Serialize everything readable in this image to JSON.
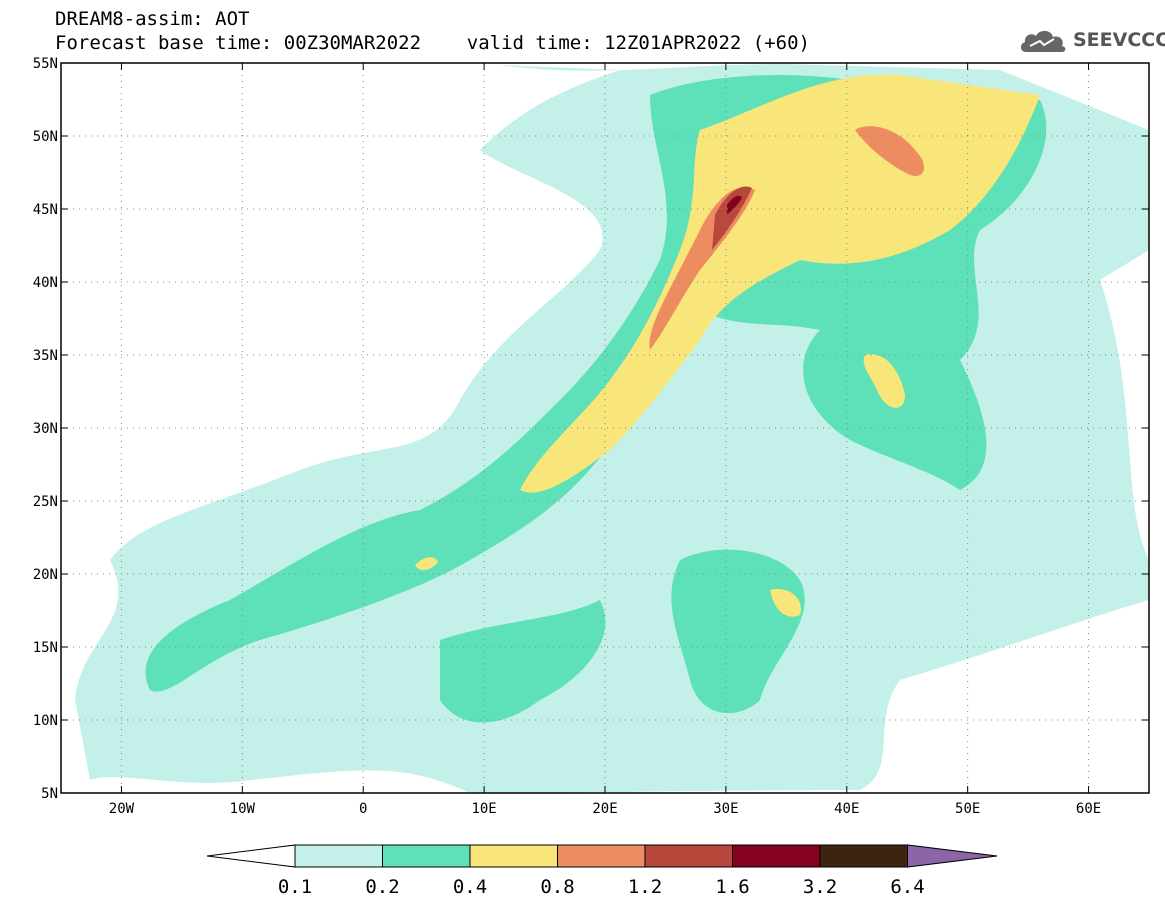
{
  "title": {
    "line1": "DREAM8-assim: AOT",
    "line2": "Forecast base time: 00Z30MAR2022    valid time: 12Z01APR2022 (+60)"
  },
  "logo": {
    "text": "SEEVCCC",
    "icon": "cloud-icon"
  },
  "map": {
    "lon_range": [
      -25,
      65
    ],
    "lat_range": [
      5,
      55
    ],
    "lat_ticks": [
      "55N",
      "50N",
      "45N",
      "40N",
      "35N",
      "30N",
      "25N",
      "20N",
      "15N",
      "10N",
      "5N"
    ],
    "lon_ticks": [
      "20W",
      "10W",
      "0",
      "10E",
      "20E",
      "30E",
      "40E",
      "50E",
      "60E"
    ],
    "gridlines": "dotted"
  },
  "colorbar": {
    "labels": [
      "0.1",
      "0.2",
      "0.4",
      "0.8",
      "1.2",
      "1.6",
      "3.2",
      "6.4"
    ],
    "colors": [
      "#ffffff",
      "#c4f0ea",
      "#5ee0b8",
      "#f8e67a",
      "#ec8c60",
      "#b8483c",
      "#860020",
      "#3c2410",
      "#8c64a8"
    ]
  }
}
